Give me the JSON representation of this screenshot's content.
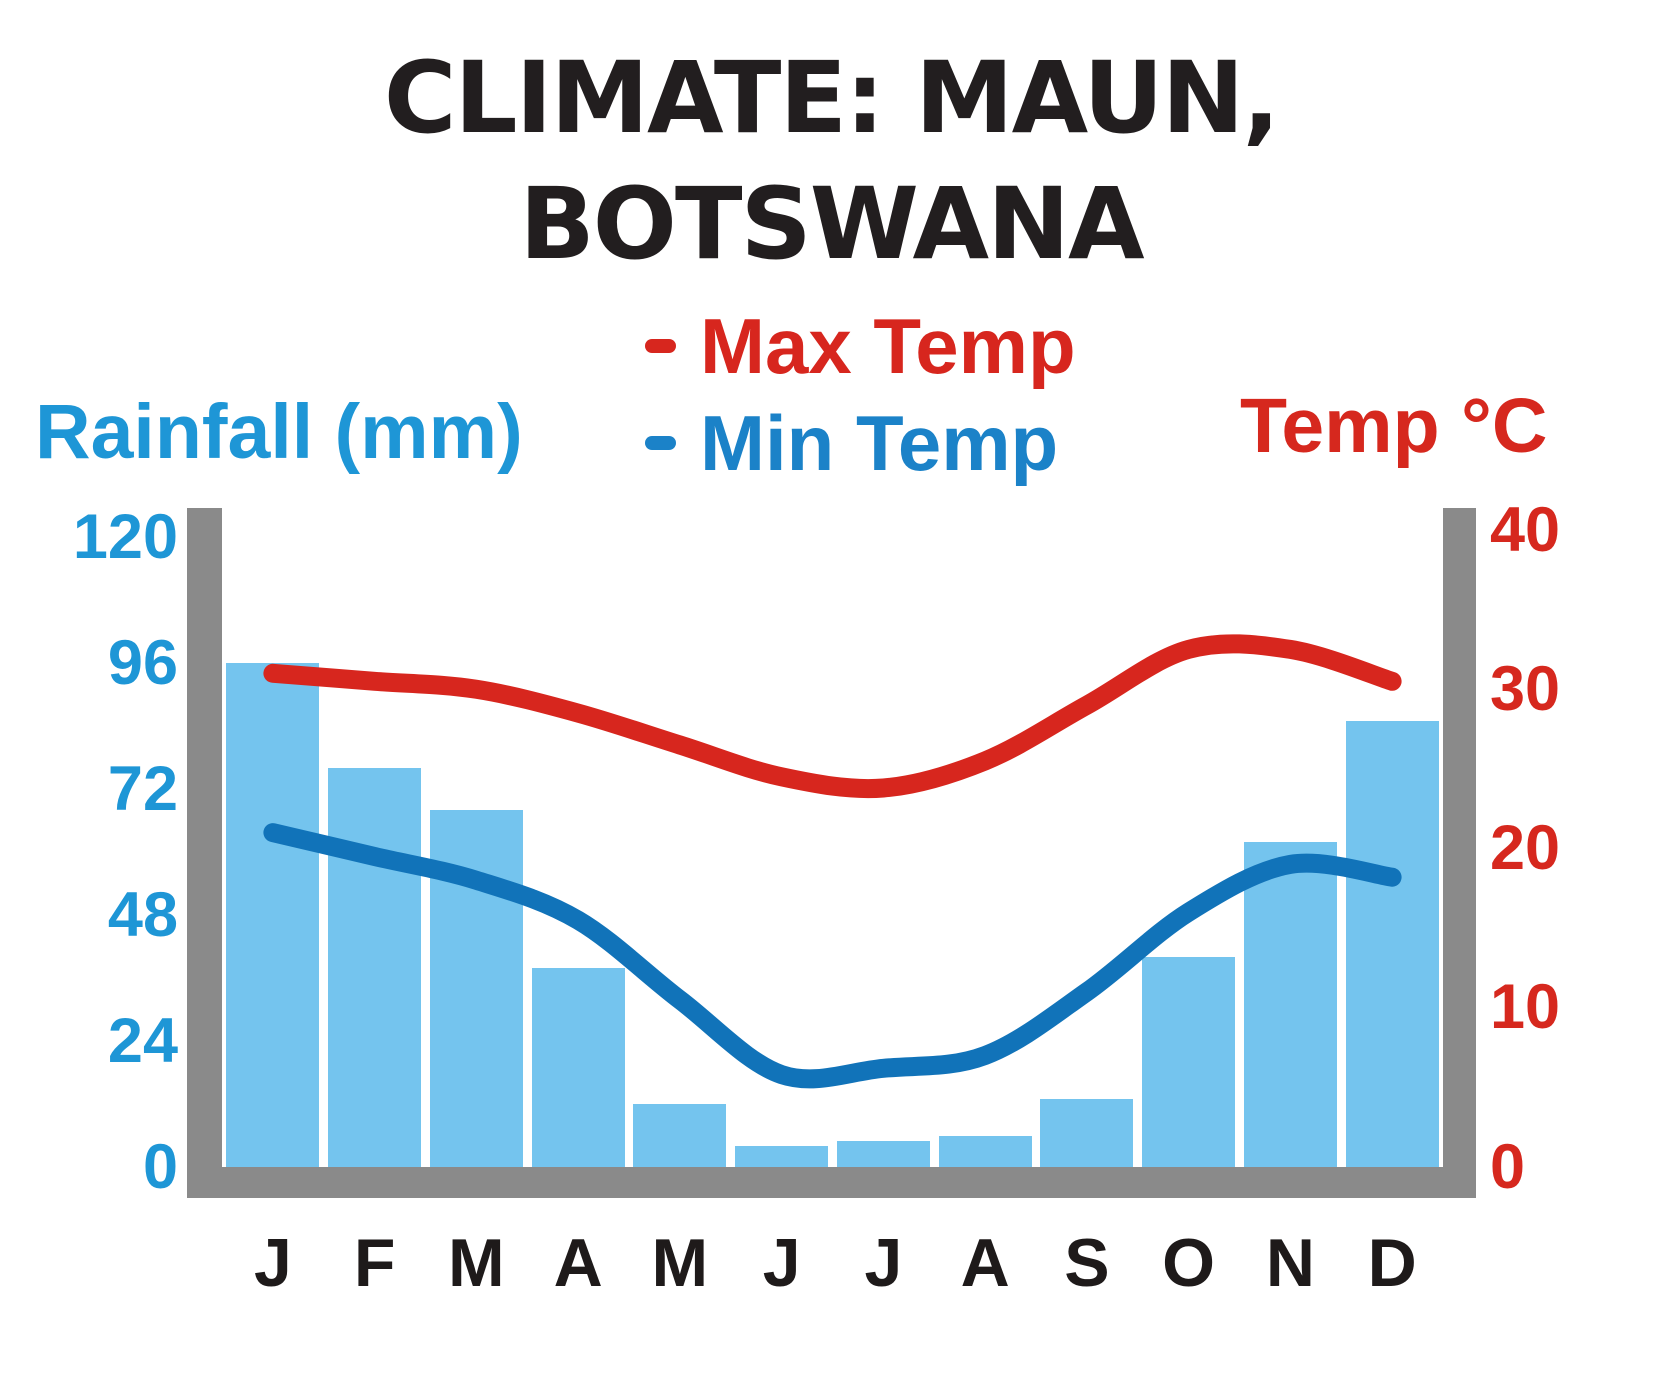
{
  "title": {
    "line1": "CLIMATE: MAUN,",
    "line2": "BOTSWANA"
  },
  "legend": {
    "max": {
      "dash": "-",
      "label": "Max Temp"
    },
    "min": {
      "dash": "-",
      "label": "Min Temp"
    }
  },
  "axes": {
    "left": {
      "label": "Rainfall (mm)",
      "ticks": [
        120,
        96,
        72,
        48,
        24,
        0
      ],
      "range": [
        0,
        120
      ]
    },
    "right": {
      "label": "Temp °C",
      "ticks": [
        40,
        30,
        20,
        10,
        0
      ],
      "range": [
        0,
        40
      ]
    }
  },
  "months": [
    "J",
    "F",
    "M",
    "A",
    "M",
    "J",
    "J",
    "A",
    "S",
    "O",
    "N",
    "D"
  ],
  "chart_data": {
    "type": "bar",
    "title": "CLIMATE: MAUN, BOTSWANA",
    "categories": [
      "J",
      "F",
      "M",
      "A",
      "M",
      "J",
      "J",
      "A",
      "S",
      "O",
      "N",
      "D"
    ],
    "series": [
      {
        "name": "Rainfall (mm)",
        "type": "bar",
        "values": [
          96,
          76,
          68,
          38,
          12,
          4,
          5,
          6,
          13,
          40,
          62,
          85
        ]
      },
      {
        "name": "Max Temp",
        "type": "line",
        "unit": "°C",
        "values": [
          31,
          30.5,
          30,
          28.5,
          26.5,
          24.5,
          23.8,
          25.5,
          29,
          32.5,
          32.5,
          30.5
        ]
      },
      {
        "name": "Min Temp",
        "type": "line",
        "unit": "°C",
        "values": [
          21,
          19.5,
          18,
          15.5,
          10.5,
          5.8,
          6.2,
          7,
          11,
          16,
          19,
          18.2
        ]
      }
    ],
    "left_axis": {
      "label": "Rainfall (mm)",
      "range": [
        0,
        120
      ],
      "ticks": [
        120,
        96,
        72,
        48,
        24,
        0
      ]
    },
    "right_axis": {
      "label": "Temp °C",
      "range": [
        0,
        40
      ],
      "ticks": [
        40,
        30,
        20,
        10,
        0
      ]
    },
    "grid": false,
    "legend_position": "top"
  },
  "colors": {
    "bar_color": "#74C4EE",
    "max_color": "#D7261E",
    "min_color": "#1173B9",
    "legend_min_color": "#1B82C8",
    "blue_text_color": "#1E96D6",
    "red_text_color": "#D6281E",
    "axis_gray": "#8A8A8A",
    "title_color": "#221E1F",
    "month_color": "#1E1A1A"
  }
}
